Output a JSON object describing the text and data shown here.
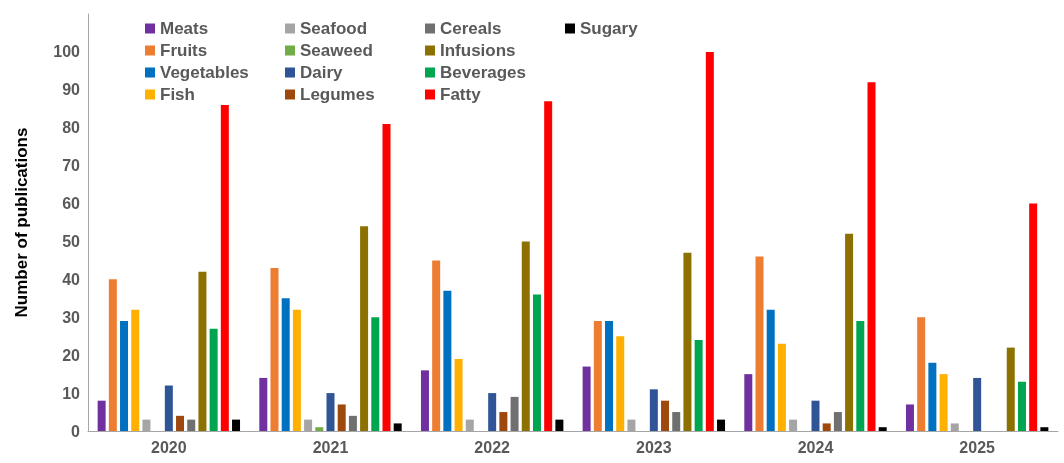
{
  "chart_data": {
    "type": "bar",
    "ylabel": "Number of publications",
    "categories": [
      "2020",
      "2021",
      "2022",
      "2023",
      "2024",
      "2025"
    ],
    "ylim": [
      0,
      110
    ],
    "yticks": [
      0,
      10,
      20,
      30,
      40,
      50,
      60,
      70,
      80,
      90,
      100
    ],
    "grid": false,
    "legend": "top left",
    "series": [
      {
        "name": "Meats",
        "color": "#7030a0",
        "values": [
          8,
          14,
          16,
          17,
          15,
          7
        ]
      },
      {
        "name": "Fruits",
        "color": "#ed7d31",
        "values": [
          40,
          43,
          45,
          29,
          46,
          30
        ]
      },
      {
        "name": "Vegetables",
        "color": "#0070c0",
        "values": [
          29,
          35,
          37,
          29,
          32,
          18
        ]
      },
      {
        "name": "Fish",
        "color": "#ffb000",
        "values": [
          32,
          32,
          19,
          25,
          23,
          15
        ]
      },
      {
        "name": "Seafood",
        "color": "#a5a5a5",
        "values": [
          3,
          3,
          3,
          3,
          3,
          2
        ]
      },
      {
        "name": "Seaweed",
        "color": "#70ad47",
        "values": [
          0,
          1,
          0,
          0,
          0,
          0
        ]
      },
      {
        "name": "Dairy",
        "color": "#2f5597",
        "values": [
          12,
          10,
          10,
          11,
          8,
          14
        ]
      },
      {
        "name": "Legumes",
        "color": "#9e480e",
        "values": [
          4,
          7,
          5,
          8,
          2,
          0
        ]
      },
      {
        "name": "Cereals",
        "color": "#707070",
        "values": [
          3,
          4,
          9,
          5,
          5,
          0
        ]
      },
      {
        "name": "Infusions",
        "color": "#8c7000",
        "values": [
          42,
          54,
          50,
          47,
          52,
          22
        ]
      },
      {
        "name": "Beverages",
        "color": "#00a550",
        "values": [
          27,
          30,
          36,
          24,
          29,
          13
        ]
      },
      {
        "name": "Fatty",
        "color": "#ff0000",
        "values": [
          86,
          81,
          87,
          100,
          92,
          60
        ]
      },
      {
        "name": "Sugary",
        "color": "#000000",
        "values": [
          3,
          2,
          3,
          3,
          1,
          1
        ]
      }
    ]
  }
}
